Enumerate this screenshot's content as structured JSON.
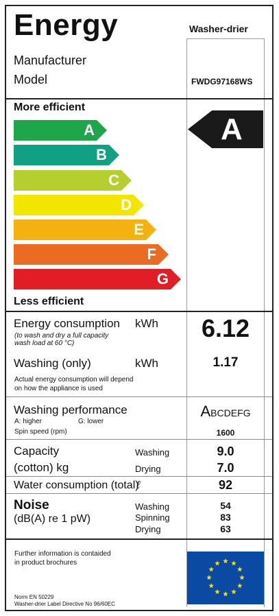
{
  "header": {
    "title": "Energy",
    "appliance_type": "Washer-drier"
  },
  "identity": {
    "manufacturer_label": "Manufacturer",
    "model_label": "Model",
    "model_value": "FWDG97168WS"
  },
  "efficiency": {
    "more_label": "More efficient",
    "less_label": "Less efficient",
    "classes": [
      {
        "letter": "A",
        "color": "#1ea64a"
      },
      {
        "letter": "B",
        "color": "#10a084"
      },
      {
        "letter": "C",
        "color": "#b4cf2e"
      },
      {
        "letter": "D",
        "color": "#f2e600"
      },
      {
        "letter": "E",
        "color": "#f5b10f"
      },
      {
        "letter": "F",
        "color": "#ec6b22"
      },
      {
        "letter": "G",
        "color": "#e11d25"
      }
    ],
    "rating": "A"
  },
  "energy": {
    "label": "Energy consumption",
    "unit": "kWh",
    "note_line1": "(to wash and dry a full capacity",
    "note_line2": "wash load at 60 °C)",
    "value": "6.12"
  },
  "washing": {
    "label": "Washing (only)",
    "unit": "kWh",
    "value": "1.17",
    "note_line1": "Actual energy consumption will depend",
    "note_line2": "on how the appliance is used"
  },
  "performance": {
    "label": "Washing performance",
    "scale_high": "A: higher",
    "scale_low": "G: lower",
    "spin_label": "Spin speed (rpm)",
    "class_first": "A",
    "class_rest": "BCDEFG",
    "spin_value": "1600"
  },
  "capacity": {
    "label_line1": "Capacity",
    "label_line2": "(cotton) kg",
    "washing_label": "Washing",
    "drying_label": "Drying",
    "washing_value": "9.0",
    "drying_value": "7.0"
  },
  "water": {
    "label": "Water consumption (total)",
    "unit": "ℓ",
    "value": "92"
  },
  "noise": {
    "label": "Noise",
    "unit": "(dB(A) re 1 pW)",
    "washing_label": "Washing",
    "spinning_label": "Spinning",
    "drying_label": "Drying",
    "washing_value": "54",
    "spinning_value": "83",
    "drying_value": "63"
  },
  "footer": {
    "info_line1": "Further information is contaided",
    "info_line2": "in product brochures",
    "norm": "Norm EN 50229",
    "directive": "Washer-drier Label Directive No 96/60EC"
  }
}
